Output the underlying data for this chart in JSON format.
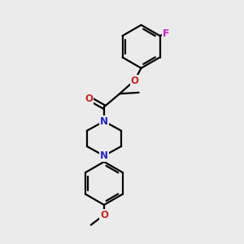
{
  "bg_color": "#ebebeb",
  "bond_color": "#000000",
  "N_color": "#2222cc",
  "O_color": "#cc2222",
  "F_color": "#cc22cc",
  "line_width": 1.6,
  "font_size": 8.5,
  "figsize": [
    3.0,
    3.0
  ],
  "dpi": 100,
  "xlim": [
    0,
    10
  ],
  "ylim": [
    0,
    10
  ]
}
